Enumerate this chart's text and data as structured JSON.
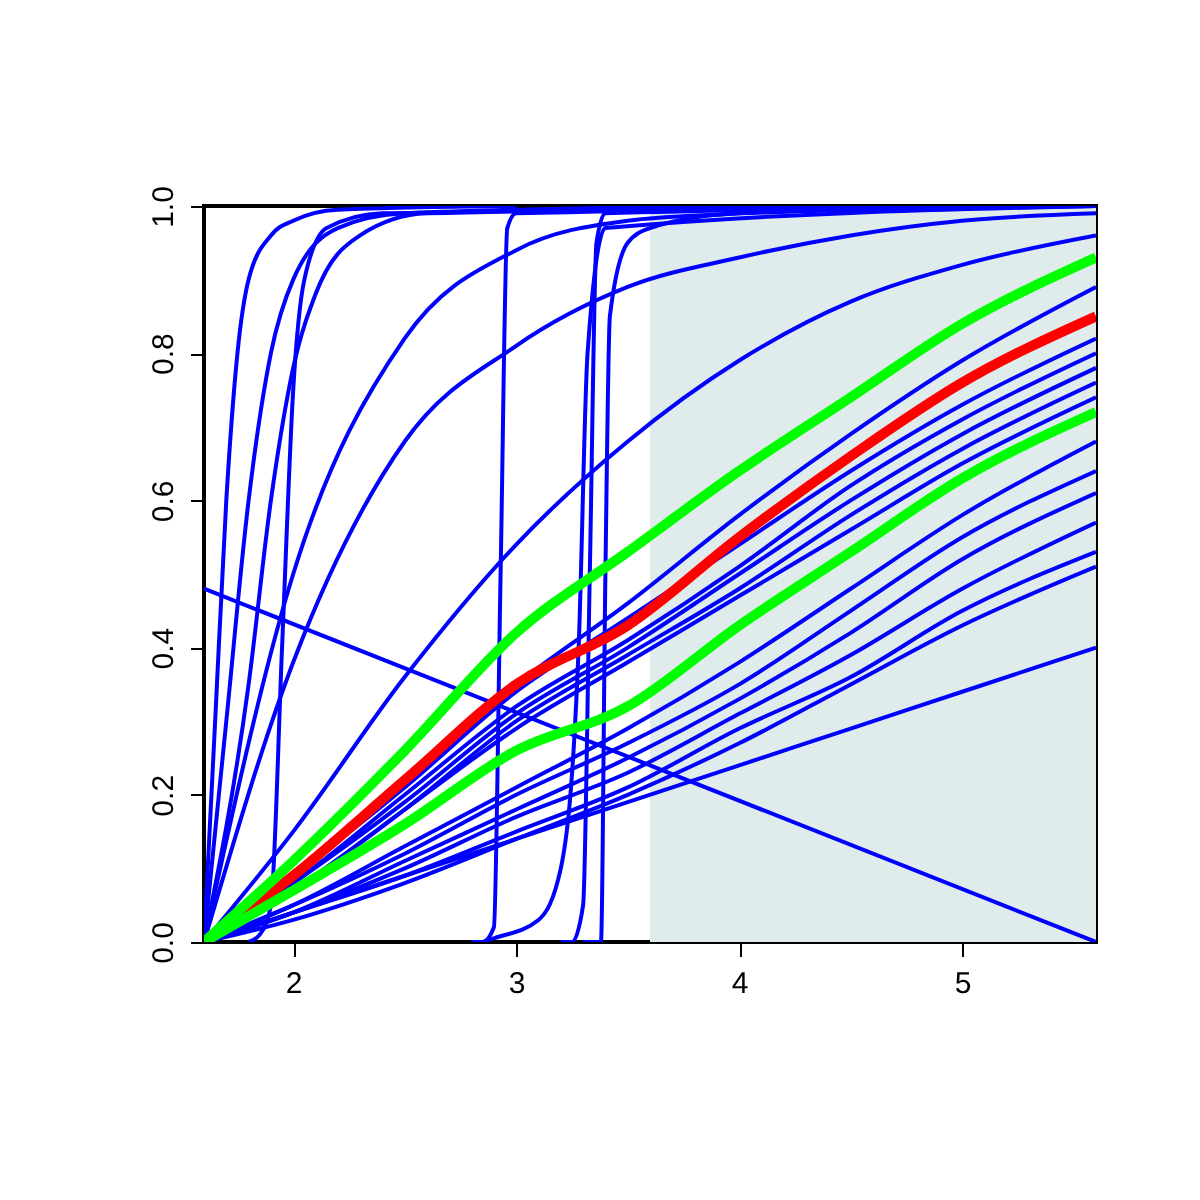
{
  "chart_data": {
    "type": "line",
    "x": [
      1.6,
      2,
      2.5,
      3,
      3.5,
      4,
      4.5,
      5,
      5.6
    ],
    "xlim": [
      1.6,
      5.6
    ],
    "ylim": [
      0,
      1
    ],
    "xticks": [
      2,
      3,
      4,
      5
    ],
    "yticks": [
      {
        "value": 0,
        "label": "0.0"
      },
      {
        "value": 0.2,
        "label": "0.2"
      },
      {
        "value": 0.4,
        "label": "0.4"
      },
      {
        "value": 0.6,
        "label": "0.6"
      },
      {
        "value": 0.8,
        "label": "0.8"
      },
      {
        "value": 1,
        "label": "1.0"
      }
    ],
    "grid": false,
    "bands": [
      {
        "axis": "x",
        "from": 3.6,
        "to": 5.6,
        "color": "#e0ecec"
      }
    ],
    "series": [
      {
        "color": "#0000ff",
        "values": [
          0,
          0.08,
          0.2,
          0.32,
          0.41,
          0.51,
          0.62,
          0.71,
          0.8
        ]
      },
      {
        "color": "#0000ff",
        "values": [
          0,
          0.08,
          0.19,
          0.31,
          0.4,
          0.5,
          0.6,
          0.69,
          0.78
        ]
      },
      {
        "color": "#0000ff",
        "values": [
          0,
          0.07,
          0.18,
          0.3,
          0.39,
          0.48,
          0.58,
          0.67,
          0.76
        ]
      },
      {
        "color": "#0000ff",
        "values": [
          0,
          0.07,
          0.18,
          0.29,
          0.38,
          0.47,
          0.56,
          0.65,
          0.74
        ]
      },
      {
        "color": "#0000ff",
        "values": [
          0,
          0.09,
          0.21,
          0.34,
          0.44,
          0.54,
          0.64,
          0.73,
          0.82
        ]
      },
      {
        "color": "#0000ff",
        "values": [
          0,
          0.09,
          0.22,
          0.35,
          0.46,
          0.58,
          0.69,
          0.79,
          0.89
        ]
      },
      {
        "color": "#0000ff",
        "values": [
          0,
          0.05,
          0.13,
          0.21,
          0.29,
          0.38,
          0.48,
          0.58,
          0.68
        ]
      },
      {
        "color": "#0000ff",
        "values": [
          0,
          0.05,
          0.12,
          0.2,
          0.27,
          0.35,
          0.45,
          0.55,
          0.64
        ]
      },
      {
        "color": "#0000ff",
        "values": [
          0,
          0.04,
          0.11,
          0.18,
          0.25,
          0.33,
          0.42,
          0.52,
          0.61
        ]
      },
      {
        "color": "#0000ff",
        "values": [
          0,
          0.04,
          0.1,
          0.17,
          0.23,
          0.31,
          0.39,
          0.48,
          0.57
        ]
      },
      {
        "color": "#0000ff",
        "values": [
          0,
          0.04,
          0.09,
          0.15,
          0.21,
          0.29,
          0.36,
          0.45,
          0.53
        ]
      },
      {
        "color": "#0000ff",
        "values": [
          0,
          0.03,
          0.08,
          0.14,
          0.2,
          0.27,
          0.35,
          0.43,
          0.51
        ]
      },
      {
        "color": "#0000ff",
        "values": [
          0,
          0.04,
          0.09,
          0.14,
          0.19,
          0.24,
          0.29,
          0.34,
          0.4
        ]
      },
      {
        "color": "#0000ff",
        "values": [
          0,
          0.5,
          0.82,
          0.94,
          0.98,
          0.99,
          1,
          1,
          1
        ]
      },
      {
        "color": "#0000ff",
        "values": [
          0,
          0.38,
          0.68,
          0.81,
          0.89,
          0.93,
          0.96,
          0.98,
          0.99
        ]
      },
      {
        "color": "#0000ff",
        "values": [
          0,
          0.15,
          0.36,
          0.54,
          0.68,
          0.79,
          0.87,
          0.92,
          0.96
        ]
      },
      {
        "color": "#0000ff",
        "x": [
          1.6,
          1.65,
          1.7,
          1.75,
          1.8,
          1.9,
          2,
          2.2,
          3
        ],
        "values": [
          0,
          0.3,
          0.6,
          0.8,
          0.9,
          0.96,
          0.98,
          0.995,
          1
        ]
      },
      {
        "color": "#0000ff",
        "x": [
          1.6,
          1.7,
          1.8,
          1.9,
          2,
          2.2,
          2.5,
          4
        ],
        "values": [
          0,
          0.3,
          0.6,
          0.8,
          0.9,
          0.97,
          0.99,
          1
        ]
      },
      {
        "color": "#0000ff",
        "x": [
          1.6,
          1.8,
          1.9,
          2,
          2.1,
          2.3,
          2.6,
          5
        ],
        "values": [
          0,
          0.35,
          0.6,
          0.78,
          0.88,
          0.96,
          0.99,
          1
        ]
      },
      {
        "color": "#0000ff",
        "x": [
          1.8,
          1.85,
          1.9,
          1.95,
          2,
          2.05,
          2.15,
          2.4,
          5.6
        ],
        "values": [
          0,
          0.01,
          0.05,
          0.4,
          0.75,
          0.9,
          0.97,
          0.99,
          1
        ]
      },
      {
        "color": "#0000ff",
        "x": [
          2.8,
          2.85,
          2.9,
          2.93,
          2.96,
          3,
          5.6
        ],
        "values": [
          0,
          0,
          0.02,
          0.5,
          0.97,
          0.99,
          1
        ]
      },
      {
        "color": "#0000ff",
        "x": [
          3.2,
          3.25,
          3.3,
          3.33,
          3.36,
          3.4,
          5.6
        ],
        "values": [
          0,
          0,
          0.05,
          0.5,
          0.95,
          0.99,
          1
        ]
      },
      {
        "color": "#0000ff",
        "x": [
          2.85,
          2.9,
          3.1,
          3.2,
          3.28,
          3.32,
          3.4,
          5.6
        ],
        "values": [
          0,
          0.005,
          0.03,
          0.1,
          0.4,
          0.8,
          0.97,
          1
        ]
      },
      {
        "color": "#0000ff",
        "x": [
          3.3,
          3.38,
          3.4,
          3.42,
          3.5,
          3.6,
          4,
          5.6
        ],
        "values": [
          0,
          0,
          0.5,
          0.85,
          0.95,
          0.97,
          0.99,
          1
        ]
      },
      {
        "color": "#0000ff",
        "x": [
          1.6,
          5.6
        ],
        "values": [
          0.48,
          0
        ]
      },
      {
        "color": "#ff0000",
        "values": [
          0,
          0.09,
          0.22,
          0.35,
          0.43,
          0.55,
          0.66,
          0.76,
          0.85
        ]
      },
      {
        "color": "#00ff00",
        "values": [
          0,
          0.11,
          0.26,
          0.42,
          0.53,
          0.64,
          0.74,
          0.84,
          0.93
        ]
      },
      {
        "color": "#00ff00",
        "values": [
          0,
          0.07,
          0.16,
          0.26,
          0.32,
          0.43,
          0.53,
          0.63,
          0.72
        ]
      }
    ]
  }
}
